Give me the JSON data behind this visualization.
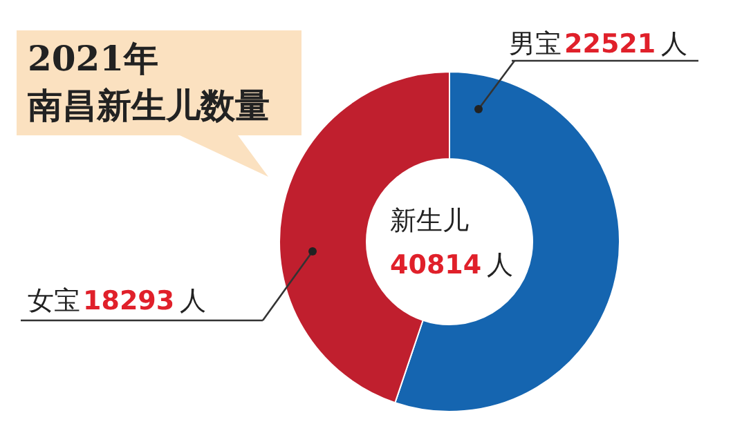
{
  "chart_data": {
    "type": "donut",
    "title": "2021年",
    "subtitle": "南昌新生儿数量",
    "categories": [
      "男宝",
      "女宝"
    ],
    "values": [
      22521,
      18293
    ],
    "colors": [
      "#1565b0",
      "#c01f2e"
    ],
    "value_labels": [
      "22521 人",
      "18293 人"
    ],
    "annotations": [
      "新生儿",
      "40814 人"
    ],
    "legend": false
  }
}
